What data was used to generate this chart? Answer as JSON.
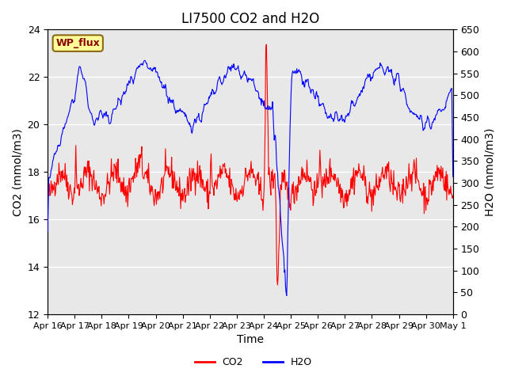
{
  "title": "LI7500 CO2 and H2O",
  "xlabel": "Time",
  "ylabel_left": "CO2 (mmol/m3)",
  "ylabel_right": "H2O (mmol/m3)",
  "ylim_left": [
    12,
    24
  ],
  "ylim_right": [
    0,
    650
  ],
  "yticks_left": [
    12,
    14,
    16,
    18,
    20,
    22,
    24
  ],
  "yticks_right": [
    0,
    50,
    100,
    150,
    200,
    250,
    300,
    350,
    400,
    450,
    500,
    550,
    600,
    650
  ],
  "xtick_labels": [
    "Apr 16",
    "Apr 17",
    "Apr 18",
    "Apr 19",
    "Apr 20",
    "Apr 21",
    "Apr 22",
    "Apr 23",
    "Apr 24",
    "Apr 25",
    "Apr 26",
    "Apr 27",
    "Apr 28",
    "Apr 29",
    "Apr 30",
    "May 1"
  ],
  "co2_color": "#FF0000",
  "h2o_color": "#0000FF",
  "background_plot": "#E8E8E8",
  "background_fig": "#FFFFFF",
  "annotation_text": "WP_flux",
  "annotation_color": "#8B0000",
  "annotation_bg": "#FFFF99",
  "annotation_border": "#8B6914",
  "grid_color": "#FFFFFF",
  "title_fontsize": 12,
  "label_fontsize": 10,
  "tick_fontsize": 9
}
